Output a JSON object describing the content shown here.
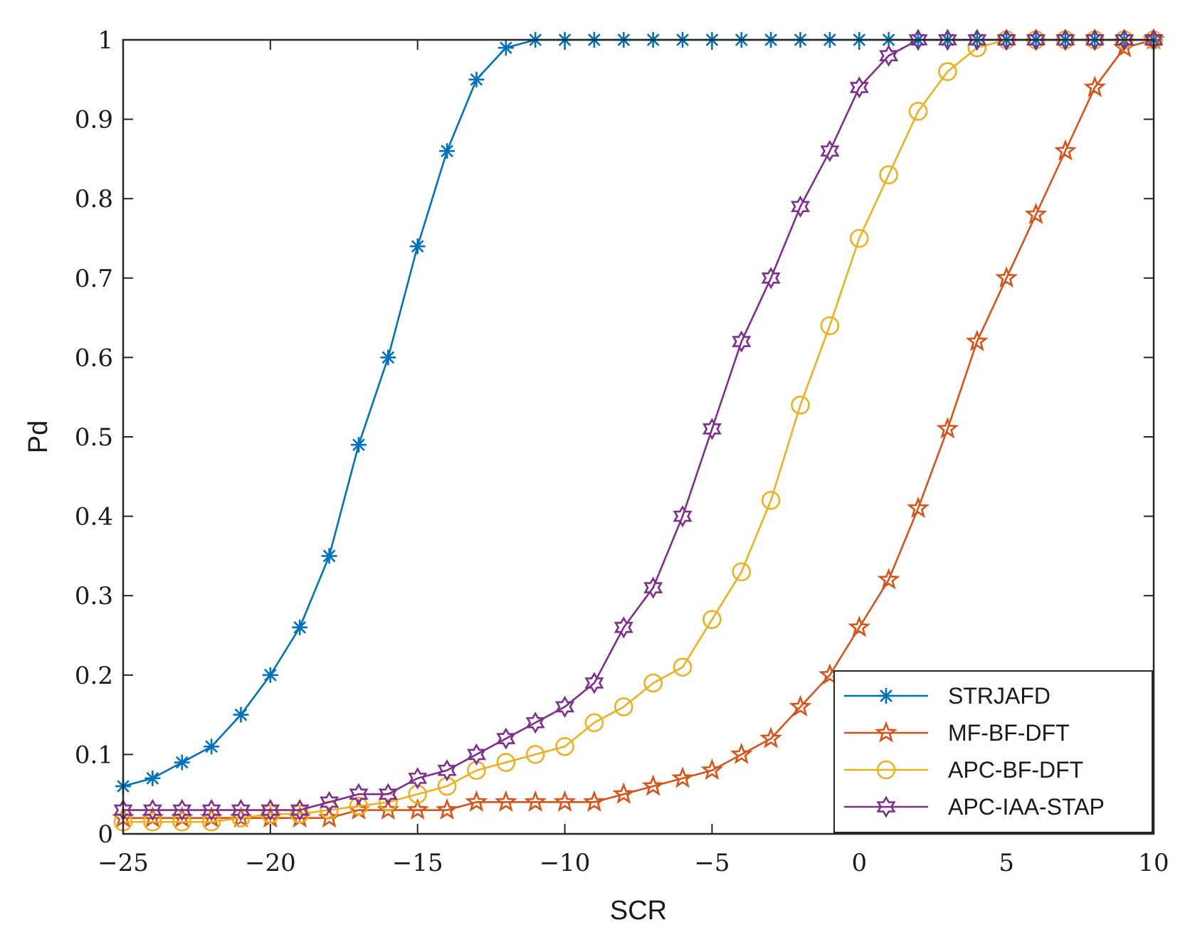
{
  "chart_data": {
    "type": "line",
    "title": "",
    "xlabel": "SCR",
    "ylabel": "Pd",
    "xlim": [
      -25,
      10
    ],
    "ylim": [
      0,
      1
    ],
    "grid": false,
    "legend_position": "bottom-right",
    "x": [
      -25,
      -24,
      -23,
      -22,
      -21,
      -20,
      -19,
      -18,
      -17,
      -16,
      -15,
      -14,
      -13,
      -12,
      -11,
      -10,
      -9,
      -8,
      -7,
      -6,
      -5,
      -4,
      -3,
      -2,
      -1,
      0,
      1,
      2,
      3,
      4,
      5,
      6,
      7,
      8,
      9,
      10
    ],
    "x_ticks": [
      -25,
      -20,
      -15,
      -10,
      -5,
      0,
      5,
      10
    ],
    "x_tick_labels": [
      "−25",
      "−20",
      "−15",
      "−10",
      "−5",
      "0",
      "5",
      "10"
    ],
    "y_ticks": [
      0,
      0.1,
      0.2,
      0.3,
      0.4,
      0.5,
      0.6,
      0.7,
      0.8,
      0.9,
      1
    ],
    "y_tick_labels": [
      "0",
      "0.1",
      "0.2",
      "0.3",
      "0.4",
      "0.5",
      "0.6",
      "0.7",
      "0.8",
      "0.9",
      "1"
    ],
    "series": [
      {
        "name": "STRJAFD",
        "color": "#0072BD",
        "marker": "asterisk",
        "values": [
          0.06,
          0.07,
          0.09,
          0.11,
          0.15,
          0.2,
          0.26,
          0.35,
          0.49,
          0.6,
          0.74,
          0.86,
          0.95,
          0.99,
          1,
          1,
          1,
          1,
          1,
          1,
          1,
          1,
          1,
          1,
          1,
          1,
          1,
          1,
          1,
          1,
          1,
          1,
          1,
          1,
          1,
          1
        ]
      },
      {
        "name": "MF-BF-DFT",
        "color": "#D95319",
        "marker": "pentagram",
        "values": [
          0.02,
          0.02,
          0.02,
          0.02,
          0.02,
          0.02,
          0.02,
          0.02,
          0.03,
          0.03,
          0.03,
          0.03,
          0.04,
          0.04,
          0.04,
          0.04,
          0.04,
          0.05,
          0.06,
          0.07,
          0.08,
          0.1,
          0.12,
          0.16,
          0.2,
          0.26,
          0.32,
          0.41,
          0.51,
          0.62,
          0.7,
          0.78,
          0.86,
          0.94,
          0.99,
          1
        ]
      },
      {
        "name": "APC-BF-DFT",
        "color": "#EDB120",
        "marker": "circle",
        "values": [
          0.015,
          0.015,
          0.015,
          0.015,
          0.02,
          0.025,
          0.025,
          0.03,
          0.035,
          0.04,
          0.05,
          0.06,
          0.08,
          0.09,
          0.1,
          0.11,
          0.14,
          0.16,
          0.19,
          0.21,
          0.27,
          0.33,
          0.42,
          0.54,
          0.64,
          0.75,
          0.83,
          0.91,
          0.96,
          0.99,
          1,
          1,
          1,
          1,
          1,
          1
        ]
      },
      {
        "name": "APC-IAA-STAP",
        "color": "#7E2F8E",
        "marker": "hexagram",
        "values": [
          0.03,
          0.03,
          0.03,
          0.03,
          0.03,
          0.03,
          0.03,
          0.04,
          0.05,
          0.05,
          0.07,
          0.08,
          0.1,
          0.12,
          0.14,
          0.16,
          0.19,
          0.26,
          0.31,
          0.4,
          0.51,
          0.62,
          0.7,
          0.79,
          0.86,
          0.94,
          0.98,
          1,
          1,
          1,
          1,
          1,
          1,
          1,
          1,
          1
        ]
      }
    ]
  }
}
